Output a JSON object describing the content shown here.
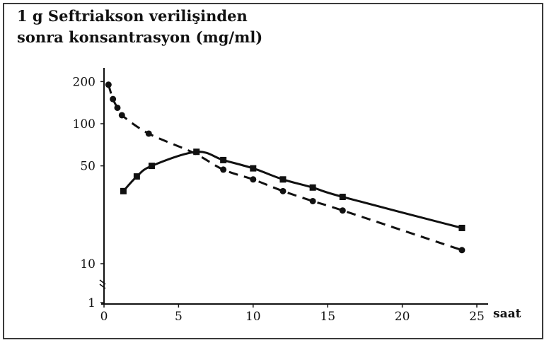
{
  "chart_data": {
    "type": "line",
    "title_line1": "1 g Seftriakson verilişinden",
    "title_line2": "sonra konsantrasyon (mg/ml)",
    "xlabel": "saat",
    "ylabel": "",
    "xlim": [
      0,
      25
    ],
    "ylim": [
      1,
      200
    ],
    "yscale": "log-broken",
    "x_ticks": [
      0,
      5,
      10,
      15,
      20,
      25
    ],
    "y_ticks": [
      1,
      10,
      50,
      100,
      200
    ],
    "grid": false,
    "legend": "none",
    "series": [
      {
        "style": "dashed",
        "marker": "circle",
        "x": [
          0.3,
          0.6,
          0.9,
          1.2,
          3.0,
          6.0,
          8.0,
          10.0,
          12.0,
          14.0,
          16.0,
          24.0
        ],
        "y": [
          190,
          150,
          130,
          115,
          85,
          62,
          47,
          40,
          33,
          28,
          24,
          12.5
        ],
        "markers_at": [
          0.3,
          0.6,
          0.9,
          1.2,
          3.0,
          8.0,
          10.0,
          12.0,
          14.0,
          16.0,
          24.0
        ]
      },
      {
        "style": "solid",
        "marker": "square",
        "x": [
          1.3,
          2.2,
          3.2,
          6.2,
          8.0,
          10.0,
          12.0,
          14.0,
          16.0,
          24.0
        ],
        "y": [
          33,
          42,
          50,
          63,
          55,
          48,
          40,
          35,
          30,
          18
        ],
        "markers_at": [
          1.3,
          2.2,
          3.2,
          6.2,
          8.0,
          10.0,
          12.0,
          14.0,
          16.0,
          24.0
        ]
      }
    ]
  }
}
